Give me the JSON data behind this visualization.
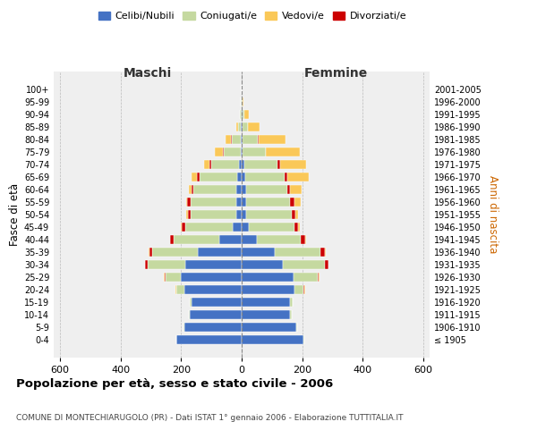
{
  "age_groups": [
    "100+",
    "95-99",
    "90-94",
    "85-89",
    "80-84",
    "75-79",
    "70-74",
    "65-69",
    "60-64",
    "55-59",
    "50-54",
    "45-49",
    "40-44",
    "35-39",
    "30-34",
    "25-29",
    "20-24",
    "15-19",
    "10-14",
    "5-9",
    "0-4"
  ],
  "birth_years": [
    "≤ 1905",
    "1906-1910",
    "1911-1915",
    "1916-1920",
    "1921-1925",
    "1926-1930",
    "1931-1935",
    "1936-1940",
    "1941-1945",
    "1946-1950",
    "1951-1955",
    "1956-1960",
    "1961-1965",
    "1966-1970",
    "1971-1975",
    "1976-1980",
    "1981-1985",
    "1986-1990",
    "1991-1995",
    "1996-2000",
    "2001-2005"
  ],
  "males": {
    "celibi": [
      0,
      1,
      1,
      2,
      3,
      4,
      10,
      15,
      18,
      18,
      18,
      30,
      75,
      145,
      185,
      200,
      190,
      165,
      170,
      190,
      215
    ],
    "coniugati": [
      0,
      2,
      4,
      10,
      30,
      55,
      90,
      125,
      140,
      150,
      150,
      155,
      150,
      150,
      125,
      50,
      25,
      5,
      4,
      2,
      2
    ],
    "vedovi": [
      0,
      0,
      2,
      6,
      18,
      28,
      18,
      18,
      8,
      4,
      4,
      3,
      2,
      2,
      2,
      2,
      2,
      0,
      0,
      0,
      0
    ],
    "divorziati": [
      0,
      0,
      0,
      0,
      2,
      2,
      5,
      8,
      8,
      12,
      10,
      12,
      10,
      10,
      8,
      5,
      2,
      0,
      0,
      0,
      0
    ]
  },
  "females": {
    "nubili": [
      0,
      1,
      2,
      2,
      4,
      4,
      8,
      12,
      15,
      15,
      16,
      25,
      50,
      110,
      135,
      170,
      175,
      160,
      160,
      180,
      205
    ],
    "coniugate": [
      0,
      2,
      7,
      18,
      50,
      75,
      110,
      130,
      135,
      145,
      150,
      150,
      145,
      150,
      140,
      80,
      30,
      7,
      5,
      2,
      2
    ],
    "vedove": [
      0,
      4,
      16,
      38,
      90,
      110,
      88,
      68,
      38,
      22,
      9,
      7,
      5,
      3,
      2,
      2,
      2,
      0,
      0,
      0,
      0
    ],
    "divorziate": [
      0,
      0,
      0,
      0,
      2,
      2,
      8,
      10,
      10,
      14,
      12,
      10,
      14,
      14,
      10,
      5,
      2,
      0,
      0,
      0,
      0
    ]
  },
  "colors": {
    "celibi": "#4472C4",
    "coniugati": "#C5D9A0",
    "vedovi": "#FAC858",
    "divorziati": "#CC0000"
  },
  "xlim": 620,
  "title": "Popolazione per età, sesso e stato civile - 2006",
  "subtitle": "COMUNE DI MONTECHIARUGOLO (PR) - Dati ISTAT 1° gennaio 2006 - Elaborazione TUTTITALIA.IT",
  "legend_labels": [
    "Celibi/Nubili",
    "Coniugati/e",
    "Vedovi/e",
    "Divorziati/e"
  ],
  "xlabel_left": "Maschi",
  "xlabel_right": "Femmine",
  "ylabel_left": "Fasce di età",
  "ylabel_right": "Anni di nascita",
  "bg_color": "#ffffff",
  "plot_bg": "#efefef"
}
